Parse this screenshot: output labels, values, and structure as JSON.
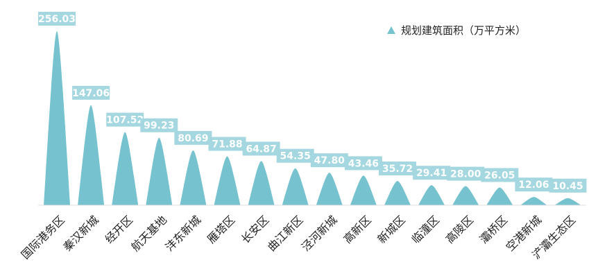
{
  "chart_data": {
    "type": "bar",
    "categories": [
      "国际港务区",
      "秦汉新城",
      "经开区",
      "航天基地",
      "沣东新城",
      "雁塔区",
      "长安区",
      "曲江新区",
      "泾河新城",
      "高新区",
      "新城区",
      "临潼区",
      "高陵区",
      "灞桥区",
      "空港新城",
      "浐灞生态区"
    ],
    "series": [
      {
        "name": "规划建筑面积（万平方米）",
        "values": [
          256.03,
          147.06,
          107.52,
          99.23,
          80.69,
          71.88,
          64.87,
          54.35,
          47.8,
          43.46,
          35.72,
          29.41,
          28.0,
          26.05,
          12.06,
          10.45
        ]
      }
    ],
    "value_labels": [
      "256.03",
      "147.06",
      "107.52",
      "99.23",
      "80.69",
      "71.88",
      "64.87",
      "54.35",
      "47.80",
      "43.46",
      "35.72",
      "29.41",
      "28.00",
      "26.05",
      "12.06",
      "10.45"
    ],
    "ylim": [
      0,
      256.03
    ],
    "grid": false,
    "legend_position": "top-right",
    "colors": {
      "bar": "#76c3cf",
      "label_bg": "#a4d7df",
      "label_text": "#ffffff"
    }
  }
}
